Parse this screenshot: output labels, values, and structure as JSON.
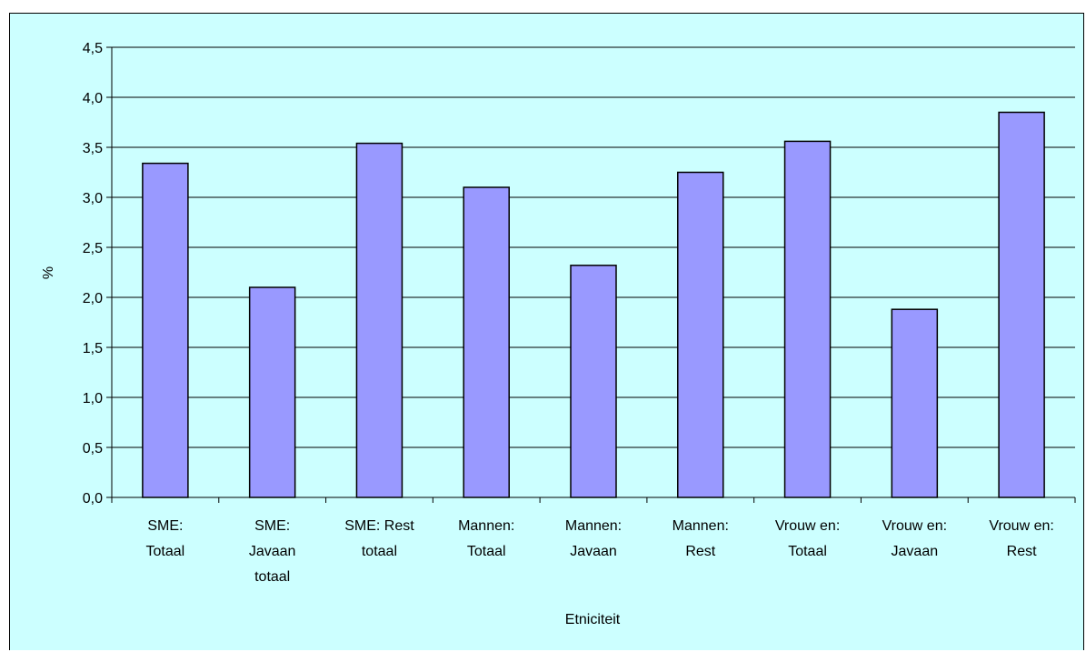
{
  "chart_data": {
    "type": "bar",
    "categories": [
      [
        "SME:",
        "Totaal"
      ],
      [
        "SME:",
        "Javaan",
        "totaal"
      ],
      [
        "SME: Rest",
        "totaal"
      ],
      [
        "Mannen:",
        "Totaal"
      ],
      [
        "Mannen:",
        "Javaan"
      ],
      [
        "Mannen:",
        "Rest"
      ],
      [
        "Vrouw en:",
        "Totaal"
      ],
      [
        "Vrouw en:",
        "Javaan"
      ],
      [
        "Vrouw en:",
        "Rest"
      ]
    ],
    "values": [
      3.34,
      2.1,
      3.54,
      3.1,
      2.32,
      3.25,
      3.56,
      1.88,
      3.85
    ],
    "title": "",
    "xlabel": "Etniciteit",
    "ylabel": "%",
    "ylim": [
      0,
      4.5
    ],
    "yticks": [
      "0,0",
      "0,5",
      "1,0",
      "1,5",
      "2,0",
      "2,5",
      "3,0",
      "3,5",
      "4,0",
      "4,5"
    ],
    "grid": true,
    "legend": "none",
    "colors": {
      "bar_fill": "#9999ff",
      "bar_stroke": "#000000",
      "background": "#ccffff",
      "gridline": "#000000"
    }
  }
}
